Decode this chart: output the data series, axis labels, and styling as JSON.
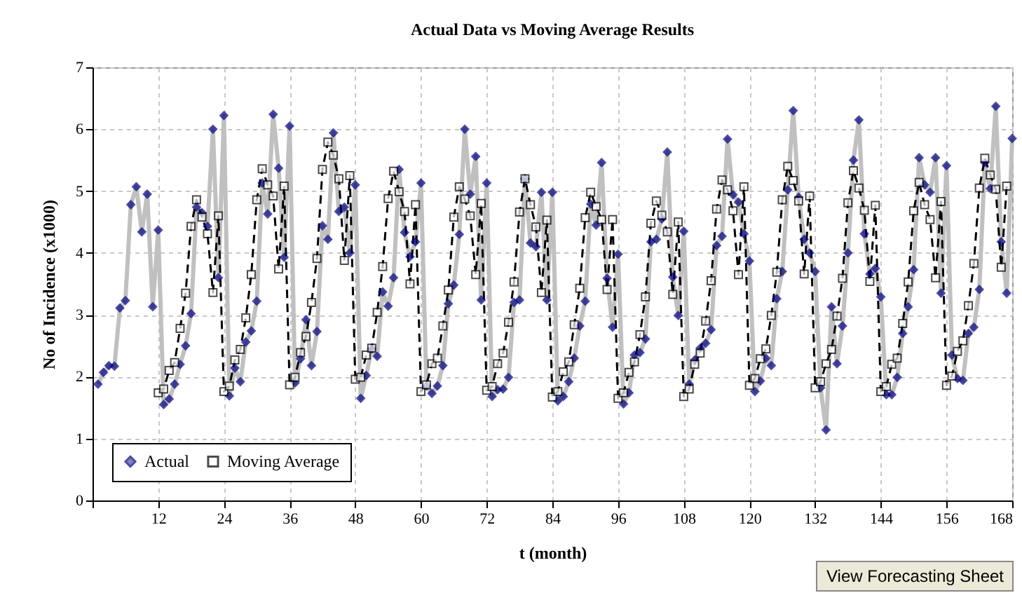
{
  "chart_data": {
    "type": "line",
    "title": "Actual Data vs Moving Average Results",
    "xlabel": "t (month)",
    "ylabel": "No of Incidence (x1000)",
    "x": [
      1,
      2,
      3,
      4,
      5,
      6,
      7,
      8,
      9,
      10,
      11,
      12,
      13,
      14,
      15,
      16,
      17,
      18,
      19,
      20,
      21,
      22,
      23,
      24,
      25,
      26,
      27,
      28,
      29,
      30,
      31,
      32,
      33,
      34,
      35,
      36,
      37,
      38,
      39,
      40,
      41,
      42,
      43,
      44,
      45,
      46,
      47,
      48,
      49,
      50,
      51,
      52,
      53,
      54,
      55,
      56,
      57,
      58,
      59,
      60,
      61,
      62,
      63,
      64,
      65,
      66,
      67,
      68,
      69,
      70,
      71,
      72,
      73,
      74,
      75,
      76,
      77,
      78,
      79,
      80,
      81,
      82,
      83,
      84,
      85,
      86,
      87,
      88,
      89,
      90,
      91,
      92,
      93,
      94,
      95,
      96,
      97,
      98,
      99,
      100,
      101,
      102,
      103,
      104,
      105,
      106,
      107,
      108,
      109,
      110,
      111,
      112,
      113,
      114,
      115,
      116,
      117,
      118,
      119,
      120,
      121,
      122,
      123,
      124,
      125,
      126,
      127,
      128,
      129,
      130,
      131,
      132,
      133,
      134,
      135,
      136,
      137,
      138,
      139,
      140,
      141,
      142,
      143,
      144,
      145,
      146,
      147,
      148,
      149,
      150,
      151,
      152,
      153,
      154,
      155,
      156,
      157,
      158,
      159,
      160,
      161,
      162,
      163,
      164,
      165,
      166,
      167,
      168
    ],
    "series": [
      {
        "name": "Actual",
        "color": "#000080",
        "marker": "diamond",
        "line_style": "solid",
        "values": [
          1.88,
          2.07,
          2.18,
          2.17,
          3.11,
          3.23,
          4.78,
          5.07,
          4.34,
          4.95,
          3.13,
          4.37,
          1.55,
          1.64,
          1.88,
          2.2,
          2.5,
          3.02,
          4.74,
          4.65,
          4.43,
          6.0,
          3.6,
          6.22,
          1.69,
          2.14,
          1.92,
          2.56,
          2.74,
          3.22,
          5.13,
          4.63,
          6.24,
          5.37,
          3.93,
          6.05,
          1.9,
          2.29,
          2.92,
          2.18,
          2.73,
          4.44,
          4.22,
          5.94,
          4.67,
          4.74,
          4.0,
          5.1,
          1.65,
          2.02,
          2.45,
          2.33,
          3.37,
          3.14,
          3.6,
          5.35,
          4.33,
          3.94,
          4.18,
          5.13,
          1.85,
          1.73,
          1.85,
          2.18,
          3.18,
          3.48,
          4.3,
          6.0,
          4.95,
          5.56,
          3.24,
          5.13,
          1.68,
          1.79,
          1.8,
          1.99,
          3.2,
          3.24,
          5.2,
          4.16,
          4.1,
          4.98,
          3.24,
          4.98,
          1.61,
          1.68,
          1.92,
          2.3,
          2.82,
          3.22,
          4.79,
          4.45,
          5.46,
          3.59,
          2.8,
          3.98,
          1.56,
          1.74,
          2.35,
          2.39,
          2.61,
          4.18,
          4.22,
          4.55,
          5.63,
          3.61,
          2.99,
          4.35,
          1.88,
          2.27,
          2.46,
          2.54,
          2.76,
          4.12,
          4.27,
          5.84,
          4.94,
          4.82,
          4.31,
          3.87,
          1.76,
          1.93,
          2.3,
          2.18,
          3.26,
          3.7,
          5.02,
          6.3,
          4.9,
          4.22,
          4.0,
          3.7,
          1.82,
          1.14,
          3.13,
          2.21,
          2.82,
          4.0,
          5.5,
          6.15,
          4.31,
          3.66,
          3.75,
          3.29,
          1.71,
          1.71,
          1.99,
          2.7,
          3.13,
          3.73,
          5.54,
          5.1,
          4.98,
          5.54,
          3.35,
          5.41,
          2.35,
          1.97,
          1.94,
          2.7,
          2.8,
          3.41,
          5.46,
          5.04,
          6.37,
          4.18,
          3.35,
          5.85
        ]
      },
      {
        "name": "Moving Average",
        "color": "#000000",
        "marker": "square",
        "line_style": "dashed",
        "values": [
          null,
          null,
          null,
          null,
          null,
          null,
          null,
          null,
          null,
          null,
          null,
          1.74,
          1.8,
          2.1,
          2.23,
          2.78,
          3.35,
          4.43,
          4.86,
          4.58,
          4.31,
          3.36,
          4.6,
          1.76,
          1.85,
          2.27,
          2.44,
          2.95,
          3.65,
          4.86,
          5.36,
          5.1,
          4.92,
          3.74,
          5.08,
          1.87,
          1.99,
          2.39,
          2.65,
          3.2,
          3.91,
          5.35,
          5.79,
          5.58,
          5.2,
          3.88,
          5.25,
          1.96,
          1.99,
          2.35,
          2.46,
          3.04,
          3.78,
          4.88,
          5.32,
          4.99,
          4.67,
          3.5,
          4.78,
          1.76,
          1.87,
          2.21,
          2.3,
          2.82,
          3.4,
          4.58,
          5.07,
          4.87,
          4.6,
          3.65,
          4.8,
          1.78,
          1.84,
          2.21,
          2.38,
          2.88,
          3.53,
          4.66,
          5.2,
          4.78,
          4.42,
          3.36,
          4.53,
          1.67,
          1.76,
          2.08,
          2.24,
          2.84,
          3.43,
          4.57,
          4.98,
          4.75,
          4.54,
          3.41,
          4.54,
          1.65,
          1.74,
          2.07,
          2.24,
          2.68,
          3.29,
          4.48,
          4.84,
          4.61,
          4.34,
          3.33,
          4.5,
          1.68,
          1.8,
          2.2,
          2.38,
          2.9,
          3.55,
          4.71,
          5.18,
          5.02,
          4.68,
          3.65,
          5.07,
          1.86,
          1.97,
          2.29,
          2.45,
          2.99,
          3.69,
          4.86,
          5.4,
          5.17,
          4.84,
          3.66,
          4.92,
          1.82,
          1.92,
          2.21,
          2.44,
          2.98,
          3.59,
          4.81,
          5.33,
          5.05,
          4.69,
          3.54,
          4.77,
          1.76,
          1.84,
          2.2,
          2.3,
          2.86,
          3.53,
          4.68,
          5.14,
          4.78,
          4.54,
          3.6,
          4.83,
          1.86,
          2.01,
          2.41,
          2.58,
          3.15,
          3.83,
          5.05,
          5.53,
          5.26,
          5.03,
          3.77,
          5.08,
          null
        ]
      }
    ],
    "xlim": [
      0,
      168
    ],
    "xticks": [
      {
        "value": 0,
        "label": null
      },
      12,
      24,
      36,
      48,
      60,
      72,
      84,
      96,
      108,
      120,
      132,
      144,
      156,
      168
    ],
    "ylim": [
      0,
      7
    ],
    "yticks": [
      0,
      1,
      2,
      3,
      4,
      5,
      6,
      7
    ],
    "grid": true,
    "legend": "bottom left",
    "annotations": [
      "View Forecasting Sheet"
    ]
  }
}
